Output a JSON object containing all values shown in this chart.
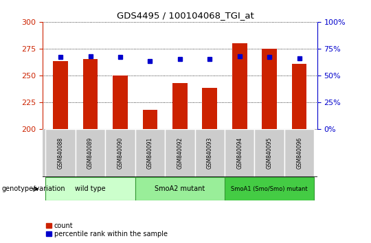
{
  "title": "GDS4495 / 100104068_TGI_at",
  "samples": [
    "GSM840088",
    "GSM840089",
    "GSM840090",
    "GSM840091",
    "GSM840092",
    "GSM840093",
    "GSM840094",
    "GSM840095",
    "GSM840096"
  ],
  "counts": [
    263,
    265,
    250,
    218,
    243,
    238,
    280,
    275,
    261
  ],
  "percentile_ranks": [
    67,
    68,
    67,
    63,
    65,
    65,
    68,
    67,
    66
  ],
  "ylim_left": [
    200,
    300
  ],
  "ylim_right": [
    0,
    100
  ],
  "yticks_left": [
    200,
    225,
    250,
    275,
    300
  ],
  "yticks_right": [
    0,
    25,
    50,
    75,
    100
  ],
  "bar_color": "#cc2200",
  "dot_color": "#0000cc",
  "groups": [
    {
      "label": "wild type",
      "start": 0,
      "end": 3,
      "color": "#ccffcc",
      "font_size": 7
    },
    {
      "label": "SmoA2 mutant",
      "start": 3,
      "end": 6,
      "color": "#99ee99",
      "font_size": 7
    },
    {
      "label": "SmoA1 (Smo/Smo) mutant",
      "start": 6,
      "end": 9,
      "color": "#44cc44",
      "font_size": 6
    }
  ],
  "legend_count_label": "count",
  "legend_pct_label": "percentile rank within the sample",
  "xlabel_genotype": "genotype/variation",
  "tick_label_color_left": "#cc2200",
  "tick_label_color_right": "#0000cc",
  "bar_width": 0.5,
  "sample_bg_color": "#cccccc",
  "sample_edge_color": "#ffffff",
  "bottom_bg_color": "#ffffff"
}
